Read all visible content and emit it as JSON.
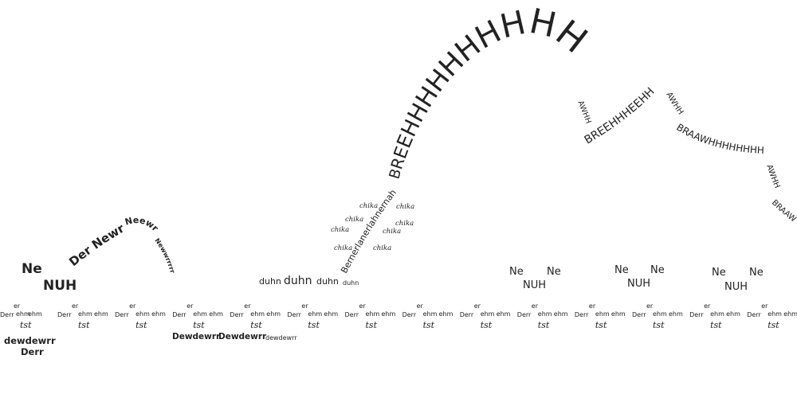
{
  "colors": {
    "ink": "#222222",
    "background": "#ffffff"
  },
  "beat": {
    "er": "er",
    "derr": "Derr",
    "ehm": "ehm",
    "tst": "tst"
  },
  "fragments": {
    "dewdewrr_partial": "dewdewrr",
    "derr_bold": "Derr",
    "dewdewrr_line": [
      "Dewdewrr",
      "Dewdewrr",
      "dewdewrr"
    ],
    "ne": "Ne",
    "nuh": "NUH",
    "der_newr": "Der Newr",
    "neewr": "Neewr",
    "newwrrrrr": "Newwrrrrr",
    "duhn": [
      "duhn",
      "duhn",
      "duhn",
      "duhn"
    ],
    "bernerlaner": "Bernerlanerlahnernah",
    "chika": "chika",
    "breeh": "BREEHHHHHHHHHH",
    "awhh_1": "AWHH",
    "breehheehh": "BREEHHHEEHH",
    "awhh_2": "AWHH",
    "braawhh": "BRAAWHHHHHHHH",
    "awhh_3": "AWHH",
    "braaw": "BRAAW"
  }
}
